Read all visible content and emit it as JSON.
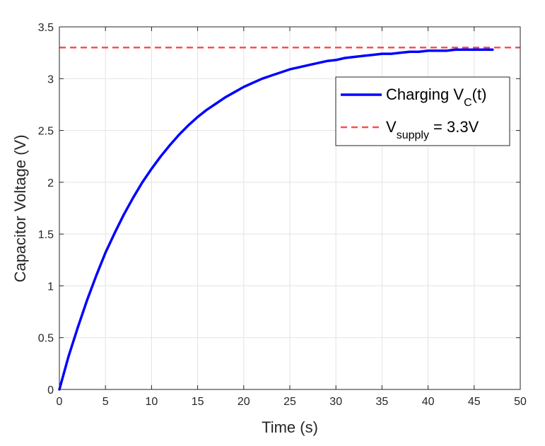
{
  "chart_data": {
    "type": "line",
    "title": "",
    "xlabel": "Time (s)",
    "ylabel": "Capacitor Voltage (V)",
    "xlim": [
      0,
      50
    ],
    "ylim": [
      0,
      3.5
    ],
    "xticks": [
      0,
      5,
      10,
      15,
      20,
      25,
      30,
      35,
      40,
      45,
      50
    ],
    "yticks": [
      0,
      0.5,
      1,
      1.5,
      2,
      2.5,
      3,
      3.5
    ],
    "xtick_labels": [
      "0",
      "5",
      "10",
      "15",
      "20",
      "25",
      "30",
      "35",
      "40",
      "45",
      "50"
    ],
    "ytick_labels": [
      "0",
      "0.5",
      "1",
      "1.5",
      "2",
      "2.5",
      "3",
      "3.5"
    ],
    "grid": true,
    "legend_position": "top-right",
    "series": [
      {
        "name": "Charging V_C(t)",
        "legend_main": "Charging V",
        "legend_sub": "C",
        "legend_tail": "(t)",
        "style": "solid",
        "color": "#0000ff",
        "x": [
          0,
          1,
          2,
          3,
          4,
          5,
          6,
          7,
          8,
          9,
          10,
          11,
          12,
          13,
          14,
          15,
          16,
          17,
          18,
          19,
          20,
          21,
          22,
          23,
          24,
          25,
          26,
          27,
          28,
          29,
          30,
          31,
          32,
          33,
          34,
          35,
          36,
          37,
          38,
          39,
          40,
          41,
          42,
          43,
          44,
          45,
          46,
          47
        ],
        "y": [
          0,
          0.32,
          0.6,
          0.86,
          1.1,
          1.32,
          1.51,
          1.69,
          1.85,
          2.0,
          2.13,
          2.25,
          2.36,
          2.46,
          2.55,
          2.63,
          2.7,
          2.76,
          2.82,
          2.87,
          2.92,
          2.96,
          3.0,
          3.03,
          3.06,
          3.09,
          3.11,
          3.13,
          3.15,
          3.17,
          3.18,
          3.2,
          3.21,
          3.22,
          3.23,
          3.24,
          3.24,
          3.25,
          3.26,
          3.26,
          3.27,
          3.27,
          3.27,
          3.28,
          3.28,
          3.28,
          3.28,
          3.28
        ]
      },
      {
        "name": "V_supply = 3.3V",
        "legend_main": "V",
        "legend_sub": "supply",
        "legend_tail": " = 3.3V",
        "style": "dashed",
        "color": "#ff4d4d",
        "x": [
          0,
          50
        ],
        "y": [
          3.3,
          3.3
        ]
      }
    ]
  }
}
